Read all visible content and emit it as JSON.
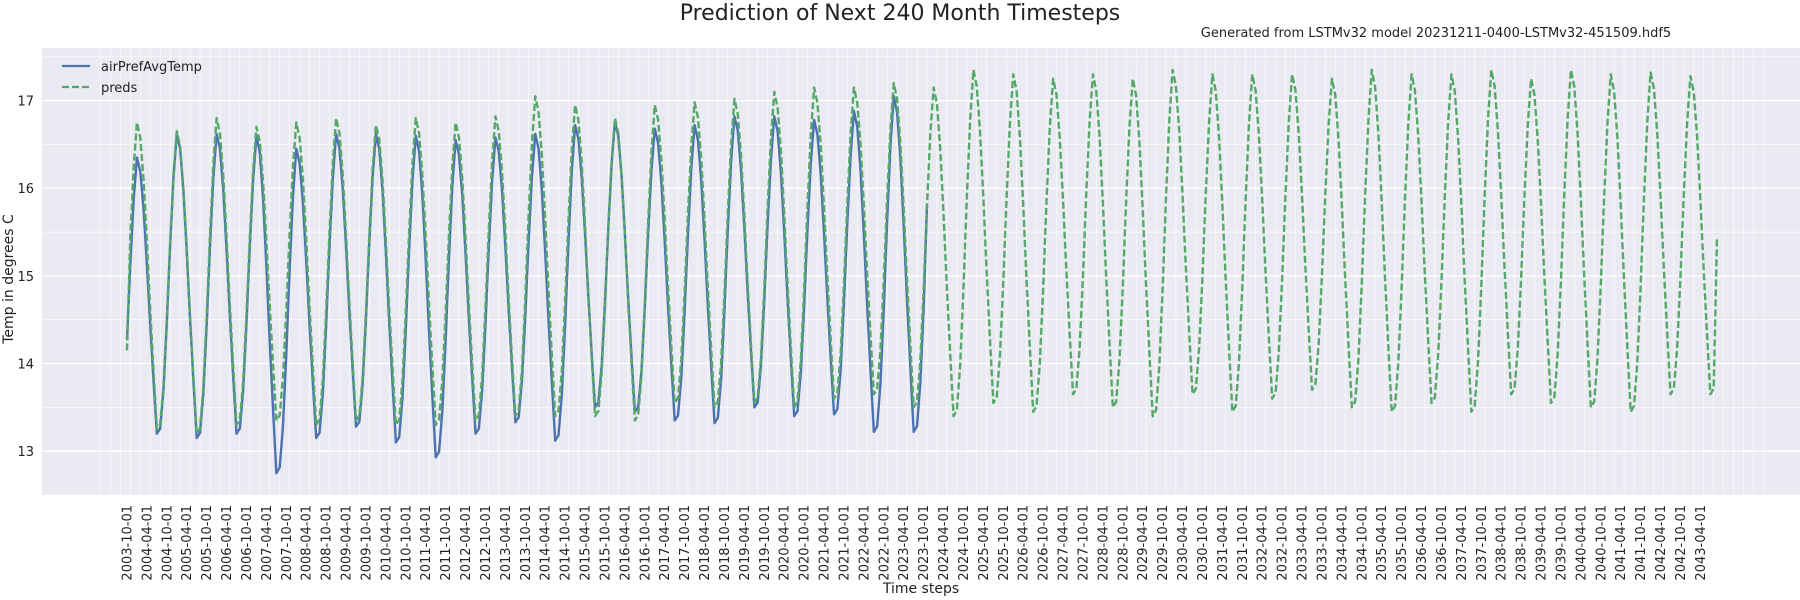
{
  "chart_data": {
    "type": "line",
    "title": "Prediction of Next 240 Month Timesteps",
    "subtitle": "Generated from LSTMv32 model 20231211-0400-LSTMv32-451509.hdf5",
    "xlabel": "Time steps",
    "ylabel": "Temp in degrees C",
    "ylim": [
      12.5,
      17.6
    ],
    "yticks": [
      13,
      14,
      15,
      16,
      17
    ],
    "grid": true,
    "legend_position": "top-left",
    "colors": {
      "actual": "#4c72b0",
      "preds": "#55a868",
      "plot_bg": "#eaeaf2",
      "grid": "#ffffff"
    },
    "x_start": "2003-10-01",
    "x_end": "2043-09-01",
    "x_tick_labels": [
      "2003-10-01",
      "2004-04-01",
      "2004-10-01",
      "2005-04-01",
      "2005-10-01",
      "2006-04-01",
      "2006-10-01",
      "2007-04-01",
      "2007-10-01",
      "2008-04-01",
      "2008-10-01",
      "2009-04-01",
      "2009-10-01",
      "2010-04-01",
      "2010-10-01",
      "2011-04-01",
      "2011-10-01",
      "2012-04-01",
      "2012-10-01",
      "2013-04-01",
      "2013-10-01",
      "2014-04-01",
      "2014-10-01",
      "2015-04-01",
      "2015-10-01",
      "2016-04-01",
      "2016-10-01",
      "2017-04-01",
      "2017-10-01",
      "2018-04-01",
      "2018-10-01",
      "2019-04-01",
      "2019-10-01",
      "2020-04-01",
      "2020-10-01",
      "2021-04-01",
      "2021-10-01",
      "2022-04-01",
      "2022-10-01",
      "2023-04-01",
      "2023-10-01",
      "2024-04-01",
      "2024-10-01",
      "2025-04-01",
      "2025-10-01",
      "2026-04-01",
      "2026-10-01",
      "2027-04-01",
      "2027-10-01",
      "2028-04-01",
      "2028-10-01",
      "2029-04-01",
      "2029-10-01",
      "2030-04-01",
      "2030-10-01",
      "2031-04-01",
      "2031-10-01",
      "2032-04-01",
      "2032-10-01",
      "2033-04-01",
      "2033-10-01",
      "2034-04-01",
      "2034-10-01",
      "2035-04-01",
      "2035-10-01",
      "2036-04-01",
      "2036-10-01",
      "2037-04-01",
      "2037-10-01",
      "2038-04-01",
      "2038-10-01",
      "2039-04-01",
      "2039-10-01",
      "2040-04-01",
      "2040-10-01",
      "2041-04-01",
      "2041-10-01",
      "2042-04-01",
      "2042-10-01",
      "2043-04-01"
    ],
    "series": [
      {
        "name": "airPrefAvgTemp",
        "style": "solid",
        "annual_minima": [
          13.05,
          13.2,
          13.15,
          13.2,
          12.75,
          13.15,
          13.28,
          13.1,
          12.93,
          13.2,
          13.33,
          13.12,
          13.5,
          13.45,
          13.35,
          13.32,
          13.5,
          13.4,
          13.42,
          13.22
        ],
        "annual_maxima": [
          16.35,
          16.62,
          16.62,
          16.6,
          16.45,
          16.62,
          16.62,
          16.6,
          16.55,
          16.58,
          16.62,
          16.72,
          16.76,
          16.68,
          16.72,
          16.82,
          16.82,
          16.78,
          16.88,
          17.05
        ],
        "final_value": 15.8
      },
      {
        "name": "preds",
        "style": "dashed",
        "annual_minima": [
          13.25,
          13.25,
          13.2,
          13.3,
          13.35,
          13.3,
          13.35,
          13.3,
          13.3,
          13.35,
          13.4,
          13.4,
          13.4,
          13.35,
          13.55,
          13.5,
          13.55,
          13.5,
          13.6,
          13.65,
          13.5,
          13.4,
          13.55,
          13.45,
          13.65,
          13.5,
          13.4,
          13.65,
          13.45,
          13.6,
          13.7,
          13.5,
          13.45,
          13.55,
          13.45,
          13.65,
          13.55,
          13.5,
          13.45,
          13.65
        ],
        "annual_maxima": [
          16.75,
          16.65,
          16.8,
          16.7,
          16.75,
          16.8,
          16.72,
          16.8,
          16.75,
          16.82,
          17.05,
          16.95,
          16.8,
          16.95,
          16.98,
          17.02,
          17.1,
          17.15,
          17.15,
          17.2,
          17.15,
          17.35,
          17.3,
          17.25,
          17.3,
          17.25,
          17.35,
          17.3,
          17.3,
          17.3,
          17.25,
          17.35,
          17.3,
          17.3,
          17.35,
          17.25,
          17.35,
          17.3,
          17.32,
          17.28
        ],
        "start_value": 14.15,
        "final_value": 15.45
      }
    ]
  }
}
